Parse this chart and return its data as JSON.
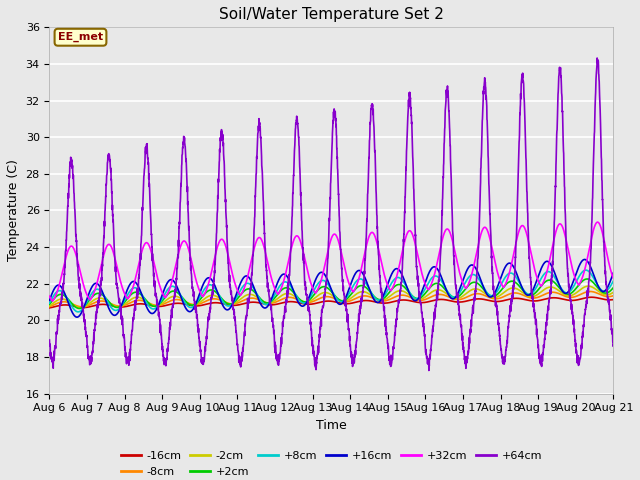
{
  "title": "Soil/Water Temperature Set 2",
  "xlabel": "Time",
  "ylabel": "Temperature (C)",
  "ylim": [
    16,
    36
  ],
  "xlim": [
    0,
    15
  ],
  "background_color": "#e8e8e8",
  "annotation_text": "EE_met",
  "annotation_bg": "#ffffcc",
  "annotation_border": "#886600",
  "series": {
    "-16cm": {
      "color": "#cc0000",
      "lw": 1.2
    },
    "-8cm": {
      "color": "#ff8800",
      "lw": 1.2
    },
    "-2cm": {
      "color": "#cccc00",
      "lw": 1.2
    },
    "+2cm": {
      "color": "#00cc00",
      "lw": 1.2
    },
    "+8cm": {
      "color": "#00cccc",
      "lw": 1.2
    },
    "+16cm": {
      "color": "#0000cc",
      "lw": 1.2
    },
    "+32cm": {
      "color": "#ff00ff",
      "lw": 1.2
    },
    "+64cm": {
      "color": "#8800cc",
      "lw": 1.2
    }
  },
  "xtick_labels": [
    "Aug 6",
    "Aug 7",
    "Aug 8",
    "Aug 9",
    "Aug 10",
    "Aug 11",
    "Aug 12",
    "Aug 13",
    "Aug 14",
    "Aug 15",
    "Aug 16",
    "Aug 17",
    "Aug 18",
    "Aug 19",
    "Aug 20",
    "Aug 21"
  ],
  "xtick_positions": [
    0,
    1,
    2,
    3,
    4,
    5,
    6,
    7,
    8,
    9,
    10,
    11,
    12,
    13,
    14,
    15
  ],
  "ytick_positions": [
    16,
    18,
    20,
    22,
    24,
    26,
    28,
    30,
    32,
    34,
    36
  ],
  "figsize": [
    6.4,
    4.8
  ],
  "dpi": 100
}
